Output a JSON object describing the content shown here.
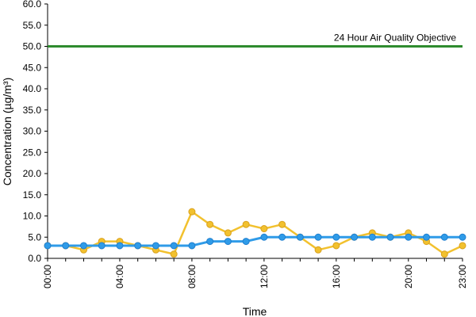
{
  "chart_data": {
    "type": "line",
    "title": "",
    "xlabel": "Time",
    "ylabel": "Concentration (µg/m³)",
    "ylim": [
      0,
      60
    ],
    "yticks": [
      "0.0",
      "5.0",
      "10.0",
      "15.0",
      "20.0",
      "25.0",
      "30.0",
      "35.0",
      "40.0",
      "45.0",
      "50.0",
      "55.0",
      "60.0"
    ],
    "xlim": [
      0,
      23
    ],
    "xticks": [
      {
        "x": 0,
        "label": "00:00"
      },
      {
        "x": 4,
        "label": "04:00"
      },
      {
        "x": 8,
        "label": "08:00"
      },
      {
        "x": 12,
        "label": "12:00"
      },
      {
        "x": 16,
        "label": "16:00"
      },
      {
        "x": 20,
        "label": "20:00"
      },
      {
        "x": 23,
        "label": "23:00"
      }
    ],
    "x": [
      0,
      1,
      2,
      3,
      4,
      5,
      6,
      7,
      8,
      9,
      10,
      11,
      12,
      13,
      14,
      15,
      16,
      17,
      18,
      19,
      20,
      21,
      22,
      23
    ],
    "grid": false,
    "legend": "none",
    "series": [
      {
        "color": "#f2c12e",
        "marker_fill": "#f2c12e",
        "marker_stroke": "#d9a11d",
        "values": [
          3,
          3,
          2,
          4,
          4,
          3,
          2,
          1,
          11,
          8,
          6,
          8,
          7,
          8,
          5,
          2,
          3,
          5,
          6,
          5,
          6,
          4,
          1,
          3
        ]
      },
      {
        "color": "#2f9be8",
        "marker_fill": "#2f9be8",
        "marker_stroke": "#1f7fcf",
        "values": [
          3,
          3,
          3,
          3,
          3,
          3,
          3,
          3,
          3,
          4,
          4,
          4,
          5,
          5,
          5,
          5,
          5,
          5,
          5,
          5,
          5,
          5,
          5,
          5
        ]
      }
    ],
    "objective": {
      "value": 50,
      "label": "24 Hour Air Quality Objective",
      "color": "#2e8b2e"
    }
  }
}
